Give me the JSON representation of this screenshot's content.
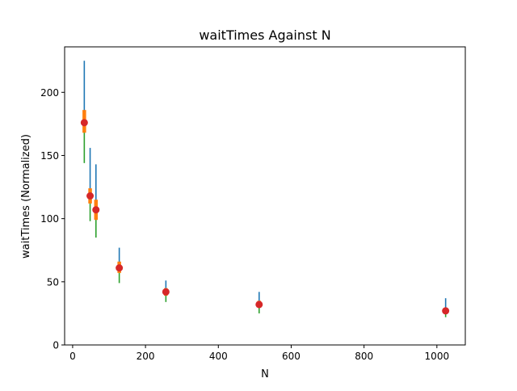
{
  "chart_data": {
    "type": "scatter",
    "title": "waitTimes Against N",
    "xlabel": "N",
    "ylabel": "waitTimes (Normalized)",
    "xlim": [
      -22,
      1078
    ],
    "ylim": [
      0,
      236
    ],
    "xticks": [
      0,
      200,
      400,
      600,
      800,
      1000
    ],
    "yticks": [
      0,
      50,
      100,
      150,
      200
    ],
    "grid": false,
    "legend": "none",
    "points": [
      {
        "x": 32,
        "y": 176,
        "max_upper": 225,
        "spread_low": 168,
        "spread_high": 186,
        "min_lower": 144
      },
      {
        "x": 48,
        "y": 118,
        "max_upper": 156,
        "spread_low": 112,
        "spread_high": 124,
        "min_lower": 98
      },
      {
        "x": 64,
        "y": 107,
        "max_upper": 143,
        "spread_low": 99,
        "spread_high": 115,
        "min_lower": 85
      },
      {
        "x": 128,
        "y": 61,
        "max_upper": 77,
        "spread_low": 57,
        "spread_high": 66,
        "min_lower": 49
      },
      {
        "x": 256,
        "y": 42,
        "max_upper": 51,
        "spread_low": 39,
        "spread_high": 45,
        "min_lower": 34
      },
      {
        "x": 512,
        "y": 32,
        "max_upper": 42,
        "spread_low": 30,
        "spread_high": 35,
        "min_lower": 25
      },
      {
        "x": 1024,
        "y": 27,
        "max_upper": 37,
        "spread_low": 25,
        "spread_high": 29,
        "min_lower": 22
      }
    ],
    "colors": {
      "upper_bar": "#1f77b4",
      "mid_bar": "#ff7f0e",
      "lower_bar": "#2ca02c",
      "marker": "#d62728"
    }
  }
}
